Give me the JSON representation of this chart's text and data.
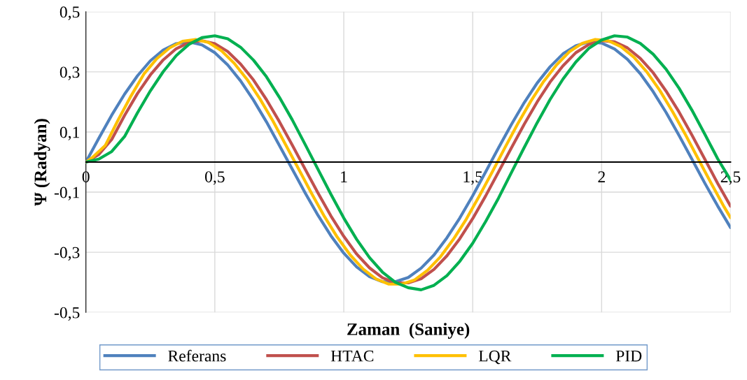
{
  "chart_data": {
    "type": "line",
    "xlabel": "Zaman  (Saniye)",
    "ylabel": "Ψ (Radyan)",
    "xlim": [
      0,
      2.5
    ],
    "ylim": [
      -0.5,
      0.5
    ],
    "xticks": [
      0,
      {
        "value": 0.5,
        "label": "0,5"
      },
      1,
      {
        "value": 1.5,
        "label": "1,5"
      },
      2,
      {
        "value": 2.5,
        "label": "2,5"
      }
    ],
    "yticks": [
      {
        "value": -0.5,
        "label": "-0,5"
      },
      {
        "value": -0.3,
        "label": "-0,3"
      },
      {
        "value": -0.1,
        "label": "-0,1"
      },
      {
        "value": 0.1,
        "label": "0,1"
      },
      {
        "value": 0.3,
        "label": "0,3"
      },
      {
        "value": 0.5,
        "label": "0,5"
      }
    ],
    "grid": true,
    "legend": "bottom",
    "marker": "none",
    "line_style": "solid",
    "x": [
      0,
      0.05,
      0.1,
      0.15,
      0.2,
      0.25,
      0.3,
      0.35,
      0.4,
      0.45,
      0.5,
      0.55,
      0.6,
      0.65,
      0.7,
      0.75,
      0.8,
      0.85,
      0.9,
      0.95,
      1.0,
      1.05,
      1.1,
      1.15,
      1.2,
      1.25,
      1.3,
      1.35,
      1.4,
      1.45,
      1.5,
      1.55,
      1.6,
      1.65,
      1.7,
      1.75,
      1.8,
      1.85,
      1.9,
      1.95,
      2.0,
      2.05,
      2.1,
      2.15,
      2.2,
      2.25,
      2.3,
      2.35,
      2.4,
      2.45,
      2.5
    ],
    "series": [
      {
        "name": "Referans",
        "color": "#4f81bd",
        "values": [
          0,
          0.079,
          0.156,
          0.226,
          0.287,
          0.337,
          0.373,
          0.394,
          0.4,
          0.39,
          0.364,
          0.323,
          0.27,
          0.206,
          0.134,
          0.056,
          -0.023,
          -0.102,
          -0.177,
          -0.245,
          -0.303,
          -0.349,
          -0.381,
          -0.398,
          -0.398,
          -0.384,
          -0.353,
          -0.309,
          -0.252,
          -0.186,
          -0.112,
          -0.033,
          0.047,
          0.125,
          0.198,
          0.263,
          0.317,
          0.36,
          0.387,
          0.4,
          0.396,
          0.376,
          0.342,
          0.294,
          0.234,
          0.165,
          0.089,
          0.01,
          -0.07,
          -0.146,
          -0.218
        ]
      },
      {
        "name": "HTAC",
        "color": "#c0504d",
        "values": [
          0,
          0.025,
          0.075,
          0.155,
          0.228,
          0.29,
          0.34,
          0.377,
          0.398,
          0.404,
          0.394,
          0.368,
          0.326,
          0.273,
          0.208,
          0.135,
          0.057,
          -0.023,
          -0.103,
          -0.179,
          -0.247,
          -0.306,
          -0.352,
          -0.385,
          -0.402,
          -0.402,
          -0.388,
          -0.357,
          -0.312,
          -0.255,
          -0.188,
          -0.113,
          -0.033,
          0.047,
          0.126,
          0.2,
          0.266,
          0.32,
          0.364,
          0.391,
          0.404,
          0.4,
          0.38,
          0.345,
          0.297,
          0.236,
          0.167,
          0.09,
          0.01,
          -0.071,
          -0.147
        ]
      },
      {
        "name": "LQR",
        "color": "#ffc000",
        "x": [
          0,
          0.025,
          0.075,
          0.125,
          0.175,
          0.225,
          0.275,
          0.325,
          0.375,
          0.425,
          0.475,
          0.525,
          0.575,
          0.625,
          0.675,
          0.725,
          0.775,
          0.825,
          0.875,
          0.925,
          0.975,
          1.025,
          1.075,
          1.125,
          1.175,
          1.225,
          1.275,
          1.325,
          1.375,
          1.425,
          1.475,
          1.525,
          1.575,
          1.625,
          1.675,
          1.725,
          1.775,
          1.825,
          1.875,
          1.925,
          1.975,
          2.025,
          2.075,
          2.125,
          2.175,
          2.225,
          2.275,
          2.325,
          2.375,
          2.425,
          2.475,
          2.5
        ],
        "values": [
          0,
          0.015,
          0.055,
          0.14,
          0.22,
          0.293,
          0.344,
          0.38,
          0.402,
          0.408,
          0.398,
          0.371,
          0.329,
          0.275,
          0.21,
          0.137,
          0.057,
          -0.023,
          -0.104,
          -0.181,
          -0.25,
          -0.309,
          -0.356,
          -0.389,
          -0.406,
          -0.406,
          -0.392,
          -0.36,
          -0.315,
          -0.257,
          -0.19,
          -0.114,
          -0.034,
          0.048,
          0.128,
          0.202,
          0.268,
          0.323,
          0.367,
          0.395,
          0.408,
          0.404,
          0.384,
          0.349,
          0.3,
          0.239,
          0.168,
          0.091,
          0.01,
          -0.071,
          -0.149,
          -0.185
        ]
      },
      {
        "name": "PID",
        "color": "#00b050",
        "values": [
          0,
          0.01,
          0.035,
          0.085,
          0.164,
          0.237,
          0.301,
          0.354,
          0.392,
          0.414,
          0.42,
          0.41,
          0.382,
          0.339,
          0.284,
          0.216,
          0.141,
          0.059,
          -0.024,
          -0.107,
          -0.186,
          -0.257,
          -0.318,
          -0.366,
          -0.4,
          -0.418,
          -0.425,
          -0.41,
          -0.378,
          -0.33,
          -0.27,
          -0.198,
          -0.12,
          -0.035,
          0.049,
          0.131,
          0.208,
          0.276,
          0.333,
          0.378,
          0.406,
          0.42,
          0.416,
          0.395,
          0.359,
          0.309,
          0.246,
          0.173,
          0.093,
          0.011,
          -0.06
        ]
      }
    ]
  }
}
